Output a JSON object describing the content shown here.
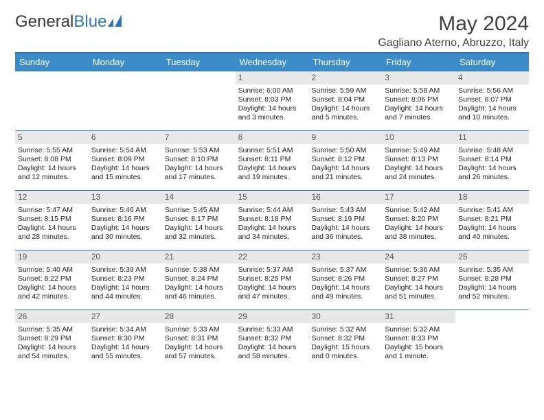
{
  "brand": {
    "part1": "General",
    "part2": "Blue"
  },
  "title": "May 2024",
  "location": "Gagliano Aterno, Abruzzo, Italy",
  "colors": {
    "header_bg": "#3c8cc9",
    "border": "#2e75b6",
    "daynum_bg": "#e8e8e8",
    "text": "#222222",
    "title_text": "#404040"
  },
  "day_headers": [
    "Sunday",
    "Monday",
    "Tuesday",
    "Wednesday",
    "Thursday",
    "Friday",
    "Saturday"
  ],
  "weeks": [
    [
      {
        "n": "",
        "sr": "",
        "ss": "",
        "dl": ""
      },
      {
        "n": "",
        "sr": "",
        "ss": "",
        "dl": ""
      },
      {
        "n": "",
        "sr": "",
        "ss": "",
        "dl": ""
      },
      {
        "n": "1",
        "sr": "Sunrise: 6:00 AM",
        "ss": "Sunset: 8:03 PM",
        "dl": "Daylight: 14 hours and 3 minutes."
      },
      {
        "n": "2",
        "sr": "Sunrise: 5:59 AM",
        "ss": "Sunset: 8:04 PM",
        "dl": "Daylight: 14 hours and 5 minutes."
      },
      {
        "n": "3",
        "sr": "Sunrise: 5:58 AM",
        "ss": "Sunset: 8:06 PM",
        "dl": "Daylight: 14 hours and 7 minutes."
      },
      {
        "n": "4",
        "sr": "Sunrise: 5:56 AM",
        "ss": "Sunset: 8:07 PM",
        "dl": "Daylight: 14 hours and 10 minutes."
      }
    ],
    [
      {
        "n": "5",
        "sr": "Sunrise: 5:55 AM",
        "ss": "Sunset: 8:08 PM",
        "dl": "Daylight: 14 hours and 12 minutes."
      },
      {
        "n": "6",
        "sr": "Sunrise: 5:54 AM",
        "ss": "Sunset: 8:09 PM",
        "dl": "Daylight: 14 hours and 15 minutes."
      },
      {
        "n": "7",
        "sr": "Sunrise: 5:53 AM",
        "ss": "Sunset: 8:10 PM",
        "dl": "Daylight: 14 hours and 17 minutes."
      },
      {
        "n": "8",
        "sr": "Sunrise: 5:51 AM",
        "ss": "Sunset: 8:11 PM",
        "dl": "Daylight: 14 hours and 19 minutes."
      },
      {
        "n": "9",
        "sr": "Sunrise: 5:50 AM",
        "ss": "Sunset: 8:12 PM",
        "dl": "Daylight: 14 hours and 21 minutes."
      },
      {
        "n": "10",
        "sr": "Sunrise: 5:49 AM",
        "ss": "Sunset: 8:13 PM",
        "dl": "Daylight: 14 hours and 24 minutes."
      },
      {
        "n": "11",
        "sr": "Sunrise: 5:48 AM",
        "ss": "Sunset: 8:14 PM",
        "dl": "Daylight: 14 hours and 26 minutes."
      }
    ],
    [
      {
        "n": "12",
        "sr": "Sunrise: 5:47 AM",
        "ss": "Sunset: 8:15 PM",
        "dl": "Daylight: 14 hours and 28 minutes."
      },
      {
        "n": "13",
        "sr": "Sunrise: 5:46 AM",
        "ss": "Sunset: 8:16 PM",
        "dl": "Daylight: 14 hours and 30 minutes."
      },
      {
        "n": "14",
        "sr": "Sunrise: 5:45 AM",
        "ss": "Sunset: 8:17 PM",
        "dl": "Daylight: 14 hours and 32 minutes."
      },
      {
        "n": "15",
        "sr": "Sunrise: 5:44 AM",
        "ss": "Sunset: 8:18 PM",
        "dl": "Daylight: 14 hours and 34 minutes."
      },
      {
        "n": "16",
        "sr": "Sunrise: 5:43 AM",
        "ss": "Sunset: 8:19 PM",
        "dl": "Daylight: 14 hours and 36 minutes."
      },
      {
        "n": "17",
        "sr": "Sunrise: 5:42 AM",
        "ss": "Sunset: 8:20 PM",
        "dl": "Daylight: 14 hours and 38 minutes."
      },
      {
        "n": "18",
        "sr": "Sunrise: 5:41 AM",
        "ss": "Sunset: 8:21 PM",
        "dl": "Daylight: 14 hours and 40 minutes."
      }
    ],
    [
      {
        "n": "19",
        "sr": "Sunrise: 5:40 AM",
        "ss": "Sunset: 8:22 PM",
        "dl": "Daylight: 14 hours and 42 minutes."
      },
      {
        "n": "20",
        "sr": "Sunrise: 5:39 AM",
        "ss": "Sunset: 8:23 PM",
        "dl": "Daylight: 14 hours and 44 minutes."
      },
      {
        "n": "21",
        "sr": "Sunrise: 5:38 AM",
        "ss": "Sunset: 8:24 PM",
        "dl": "Daylight: 14 hours and 46 minutes."
      },
      {
        "n": "22",
        "sr": "Sunrise: 5:37 AM",
        "ss": "Sunset: 8:25 PM",
        "dl": "Daylight: 14 hours and 47 minutes."
      },
      {
        "n": "23",
        "sr": "Sunrise: 5:37 AM",
        "ss": "Sunset: 8:26 PM",
        "dl": "Daylight: 14 hours and 49 minutes."
      },
      {
        "n": "24",
        "sr": "Sunrise: 5:36 AM",
        "ss": "Sunset: 8:27 PM",
        "dl": "Daylight: 14 hours and 51 minutes."
      },
      {
        "n": "25",
        "sr": "Sunrise: 5:35 AM",
        "ss": "Sunset: 8:28 PM",
        "dl": "Daylight: 14 hours and 52 minutes."
      }
    ],
    [
      {
        "n": "26",
        "sr": "Sunrise: 5:35 AM",
        "ss": "Sunset: 8:29 PM",
        "dl": "Daylight: 14 hours and 54 minutes."
      },
      {
        "n": "27",
        "sr": "Sunrise: 5:34 AM",
        "ss": "Sunset: 8:30 PM",
        "dl": "Daylight: 14 hours and 55 minutes."
      },
      {
        "n": "28",
        "sr": "Sunrise: 5:33 AM",
        "ss": "Sunset: 8:31 PM",
        "dl": "Daylight: 14 hours and 57 minutes."
      },
      {
        "n": "29",
        "sr": "Sunrise: 5:33 AM",
        "ss": "Sunset: 8:32 PM",
        "dl": "Daylight: 14 hours and 58 minutes."
      },
      {
        "n": "30",
        "sr": "Sunrise: 5:32 AM",
        "ss": "Sunset: 8:32 PM",
        "dl": "Daylight: 15 hours and 0 minutes."
      },
      {
        "n": "31",
        "sr": "Sunrise: 5:32 AM",
        "ss": "Sunset: 8:33 PM",
        "dl": "Daylight: 15 hours and 1 minute."
      },
      {
        "n": "",
        "sr": "",
        "ss": "",
        "dl": ""
      }
    ]
  ]
}
